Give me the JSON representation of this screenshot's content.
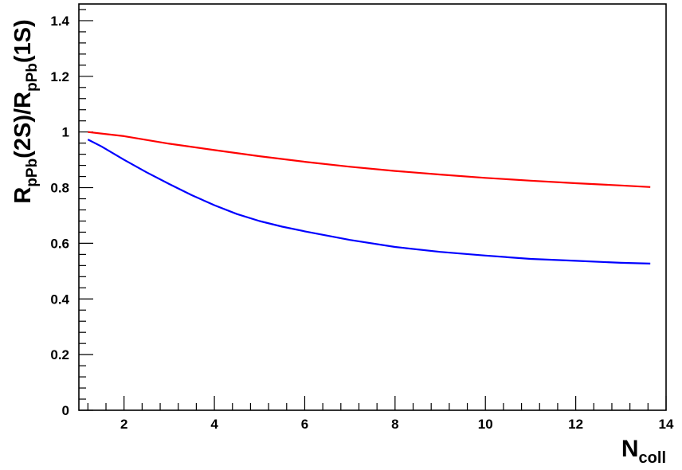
{
  "chart_data": {
    "type": "line",
    "title": "",
    "xlabel": {
      "main": "N",
      "sub": "coll"
    },
    "ylabel": {
      "parts": [
        {
          "text": "R",
          "sub": false
        },
        {
          "text": "pPb",
          "sub": true
        },
        {
          "text": "(2S)/R",
          "sub": false
        },
        {
          "text": "pPb",
          "sub": true
        },
        {
          "text": "(1S)",
          "sub": false
        }
      ]
    },
    "xlim": [
      1.0,
      14.0
    ],
    "ylim": [
      0.0,
      1.46
    ],
    "x_ticks": [
      2,
      4,
      6,
      8,
      10,
      12,
      14
    ],
    "y_ticks": [
      0,
      0.2,
      0.4,
      0.6,
      0.8,
      1,
      1.2,
      1.4
    ],
    "grid": false,
    "legend": null,
    "series": [
      {
        "color": "#ff0000",
        "x": [
          1.2,
          2.0,
          3.0,
          4.0,
          5.0,
          6.0,
          7.0,
          8.0,
          9.0,
          10.0,
          11.0,
          12.0,
          13.0,
          13.65
        ],
        "y": [
          1.0,
          0.985,
          0.958,
          0.935,
          0.913,
          0.893,
          0.875,
          0.86,
          0.847,
          0.835,
          0.825,
          0.816,
          0.808,
          0.802
        ]
      },
      {
        "color": "#0000ff",
        "x": [
          1.2,
          1.5,
          2.0,
          2.5,
          3.0,
          3.5,
          4.0,
          4.5,
          5.0,
          5.5,
          6.0,
          7.0,
          8.0,
          9.0,
          10.0,
          11.0,
          12.0,
          13.0,
          13.65
        ],
        "y": [
          0.973,
          0.948,
          0.9,
          0.855,
          0.813,
          0.773,
          0.737,
          0.705,
          0.68,
          0.66,
          0.643,
          0.612,
          0.587,
          0.569,
          0.556,
          0.544,
          0.537,
          0.53,
          0.527
        ]
      }
    ]
  }
}
